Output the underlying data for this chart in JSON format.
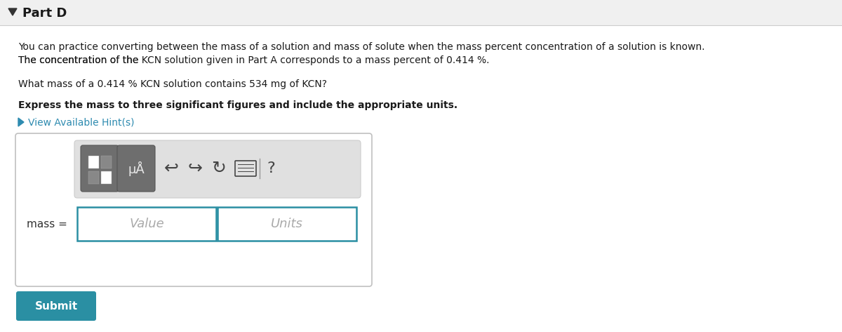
{
  "bg_color": "#f8f8f8",
  "white": "#ffffff",
  "part_d_label": "Part D",
  "arrow_color": "#333333",
  "para1_line1": "You can practice converting between the mass of a solution and mass of solute when the mass percent concentration of a solution is known.",
  "para1_line2_a": "The concentration of the ",
  "para1_line2_kcn": "KCN",
  "para1_line2_b": " solution given in Part A corresponds to a mass percent of 0.414 %.",
  "para2_a": "What mass of a 0.414 % ",
  "para2_kcn1": "KCN",
  "para2_b": " solution contains 534 mg of ",
  "para2_kcn2": "KCN",
  "para2_c": "?",
  "para3": "Express the mass to three significant figures and include the appropriate units.",
  "hint_text": "View Available Hint(s)",
  "hint_color": "#2e8bb0",
  "mass_label": "mass =",
  "value_placeholder": "Value",
  "units_placeholder": "Units",
  "submit_text": "Submit",
  "submit_bg": "#2a8fa3",
  "submit_text_color": "#ffffff",
  "toolbar_bg": "#e0e0e0",
  "toolbar_border": "#cccccc",
  "box_border": "#2a8fa3",
  "outer_box_border": "#c0c0c0",
  "input_bg": "#ffffff",
  "header_bg": "#f0f0f0",
  "header_line_color": "#cccccc",
  "btn_dark": "#777777",
  "btn_darker": "#555555",
  "icon_color": "#444444",
  "text_color": "#1a1a1a",
  "placeholder_color": "#aaaaaa"
}
